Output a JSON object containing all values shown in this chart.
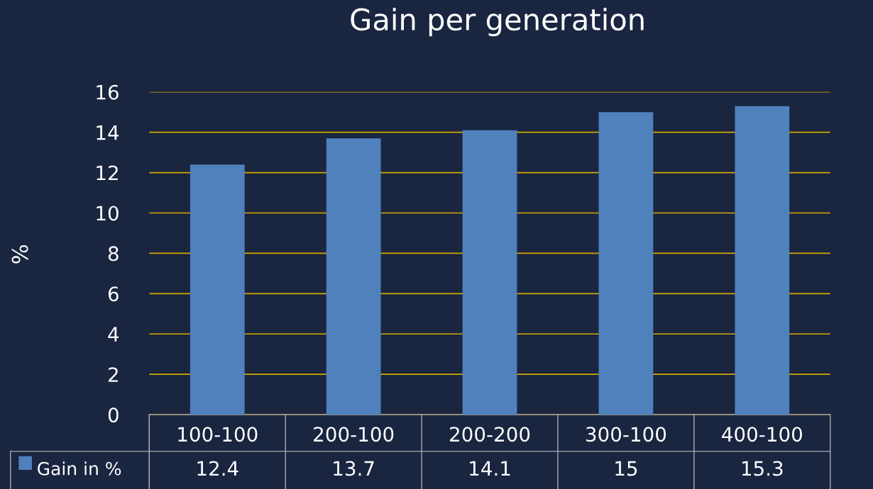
{
  "chart_data": {
    "type": "bar",
    "title": "Gain per generation",
    "ylabel": "%",
    "categories": [
      "100-100",
      "200-100",
      "200-200",
      "300-100",
      "400-100"
    ],
    "series": [
      {
        "name": "Gain in %",
        "color": "#4f81bd",
        "values": [
          12.4,
          13.7,
          14.1,
          15,
          15.3
        ]
      }
    ],
    "ylim": [
      0,
      16
    ],
    "yticks": [
      0,
      2,
      4,
      6,
      8,
      10,
      12,
      14,
      16
    ],
    "grid": "y",
    "legend": "bottom",
    "data_labels": true
  }
}
